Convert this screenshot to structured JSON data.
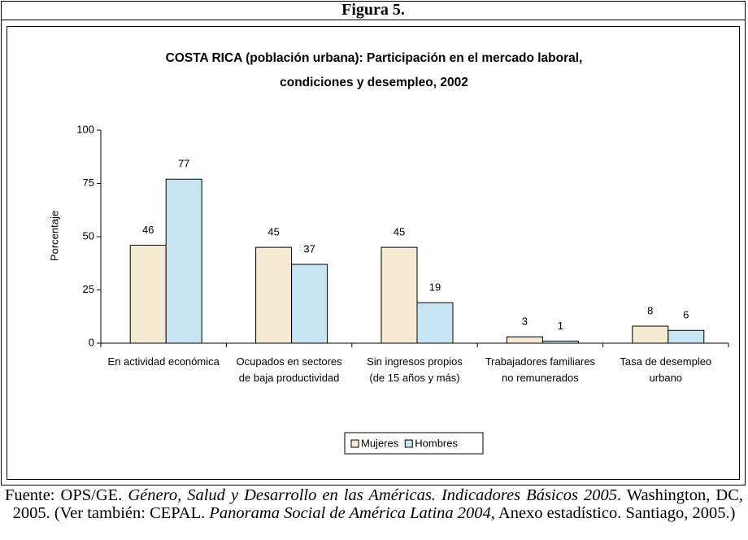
{
  "figure_label": "Figura 5.",
  "chart_data": {
    "type": "bar",
    "title": [
      "COSTA RICA (población urbana): Participación en el mercado laboral,",
      "condiciones y desempleo, 2002"
    ],
    "y_label": "Porcentaje",
    "categories": [
      "En actividad económica",
      "Ocupados en sectores de baja productividad",
      "Sin ingresos propios (de 15 años y más)",
      "Trabajadores familiares no remunerados",
      "Tasa de desempleo urbano"
    ],
    "series": [
      {
        "name": "Mujeres",
        "color": "#f4ebd2",
        "values": [
          46,
          45,
          45,
          3,
          8
        ]
      },
      {
        "name": "Hombres",
        "color": "#c7e4f2",
        "values": [
          77,
          37,
          19,
          1,
          6
        ]
      }
    ],
    "ylim": [
      0,
      100
    ],
    "yticks": [
      0,
      25,
      50,
      75,
      100
    ],
    "legend": "bottom"
  },
  "source": [
    {
      "text": "Fuente: OPS/GE. ",
      "italic": false
    },
    {
      "text": "Género, Salud y Desarrollo en las Américas. Indicadores Básicos 2005",
      "italic": true
    },
    {
      "text": ". Washington, DC, 2005. (Ver también: CEPAL. ",
      "italic": false
    },
    {
      "text": "Panorama Social de América Latina 2004,",
      "italic": true
    },
    {
      "text": " Anexo estadístico. Santiago, 2005.)",
      "italic": false
    }
  ]
}
